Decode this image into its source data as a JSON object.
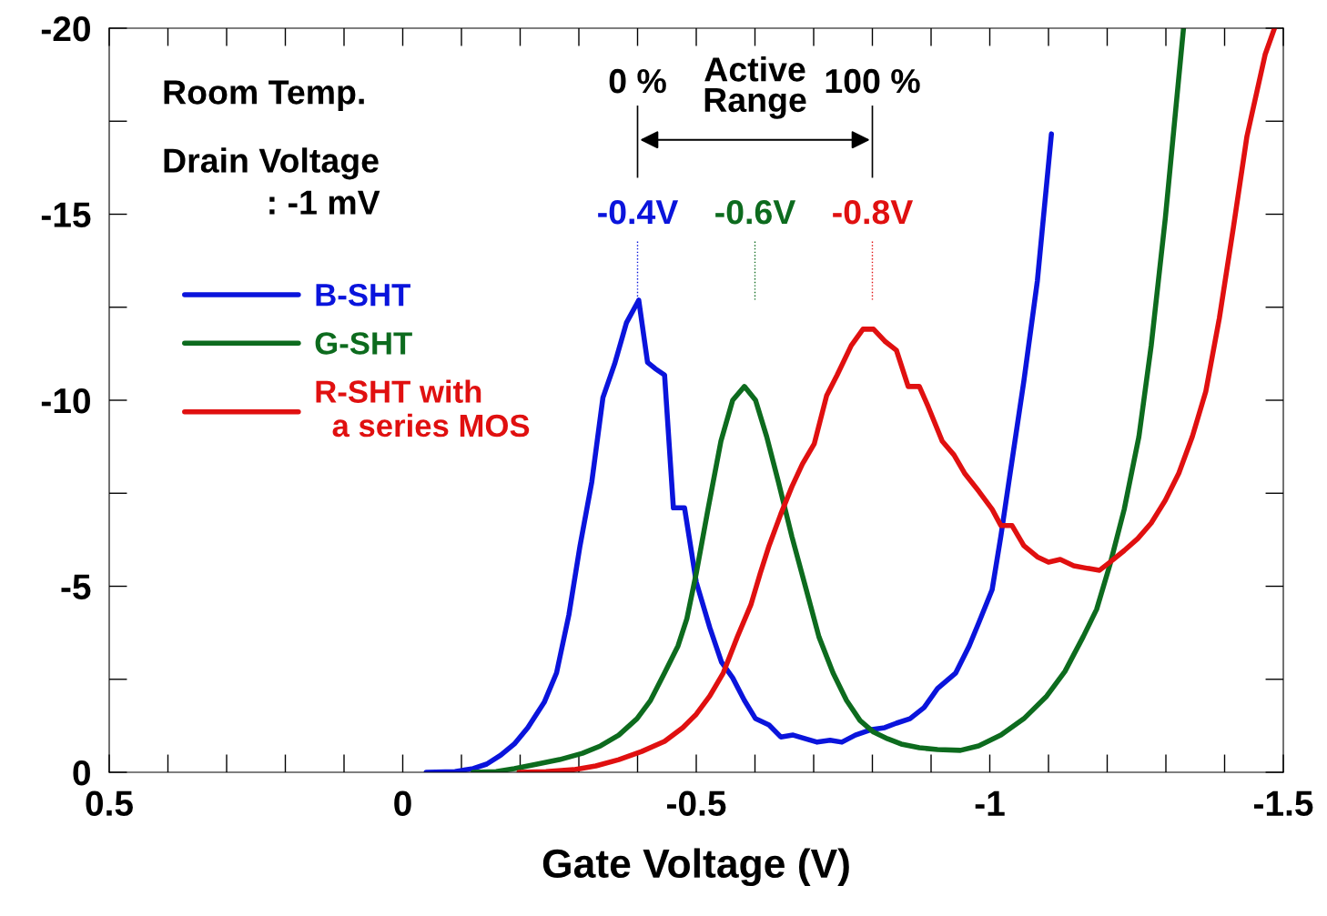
{
  "chart_data": {
    "type": "line",
    "xlabel": "Gate Voltage (V)",
    "xlim": [
      0.5,
      -1.5
    ],
    "xticks": [
      0.5,
      0,
      -0.5,
      -1,
      -1.5
    ],
    "ylim": [
      0,
      -20
    ],
    "yticks": [
      0,
      -5,
      -10,
      -15,
      -20
    ],
    "grid": false,
    "legend": "left",
    "marker": "none",
    "line_style": "solid",
    "series": [
      {
        "name": "B-SHT",
        "color": "#0a14dc",
        "x": [
          -0.04,
          -0.089,
          -0.12,
          -0.143,
          -0.167,
          -0.19,
          -0.213,
          -0.241,
          -0.262,
          -0.283,
          -0.302,
          -0.322,
          -0.341,
          -0.361,
          -0.381,
          -0.402,
          -0.417,
          -0.43,
          -0.446,
          -0.461,
          -0.48,
          -0.5,
          -0.523,
          -0.543,
          -0.562,
          -0.582,
          -0.601,
          -0.624,
          -0.644,
          -0.665,
          -0.686,
          -0.706,
          -0.728,
          -0.748,
          -0.771,
          -0.799,
          -0.821,
          -0.841,
          -0.864,
          -0.888,
          -0.911,
          -0.942,
          -0.965,
          -0.981,
          -1.004,
          -1.019,
          -1.035,
          -1.058,
          -1.081,
          -1.105
        ],
        "values": [
          0,
          -0.02,
          -0.1,
          -0.22,
          -0.46,
          -0.76,
          -1.2,
          -1.88,
          -2.67,
          -4.23,
          -6.09,
          -7.8,
          -10.07,
          -10.98,
          -12.08,
          -12.69,
          -11.02,
          -10.85,
          -10.68,
          -7.11,
          -7.11,
          -5.11,
          -3.89,
          -2.96,
          -2.54,
          -1.93,
          -1.44,
          -1.27,
          -0.95,
          -1.0,
          -0.9,
          -0.81,
          -0.86,
          -0.81,
          -1.0,
          -1.15,
          -1.2,
          -1.32,
          -1.44,
          -1.74,
          -2.25,
          -2.67,
          -3.4,
          -4.01,
          -4.91,
          -6.36,
          -8.07,
          -10.51,
          -13.2,
          -17.16
        ]
      },
      {
        "name": "G-SHT",
        "color": "#0d6b1e",
        "x": [
          -0.12,
          -0.159,
          -0.19,
          -0.229,
          -0.267,
          -0.306,
          -0.337,
          -0.368,
          -0.399,
          -0.422,
          -0.446,
          -0.469,
          -0.484,
          -0.5,
          -0.52,
          -0.542,
          -0.562,
          -0.582,
          -0.601,
          -0.62,
          -0.64,
          -0.663,
          -0.686,
          -0.709,
          -0.733,
          -0.756,
          -0.779,
          -0.802,
          -0.826,
          -0.849,
          -0.88,
          -0.911,
          -0.95,
          -0.981,
          -1.019,
          -1.058,
          -1.097,
          -1.128,
          -1.159,
          -1.182,
          -1.205,
          -1.229,
          -1.254,
          -1.275,
          -1.299,
          -1.33
        ],
        "values": [
          0,
          -0.02,
          -0.1,
          -0.22,
          -0.34,
          -0.51,
          -0.71,
          -1.0,
          -1.44,
          -1.93,
          -2.67,
          -3.4,
          -4.13,
          -5.35,
          -7.07,
          -8.9,
          -10.0,
          -10.37,
          -10.0,
          -9.02,
          -7.8,
          -6.33,
          -4.99,
          -3.64,
          -2.67,
          -1.93,
          -1.39,
          -1.08,
          -0.9,
          -0.76,
          -0.66,
          -0.61,
          -0.59,
          -0.71,
          -1.0,
          -1.44,
          -2.05,
          -2.71,
          -3.64,
          -4.38,
          -5.6,
          -7.07,
          -9.02,
          -11.47,
          -14.89,
          -20.0
        ]
      },
      {
        "name": "R-SHT with\n  a series MOS",
        "color": "#e01010",
        "x": [
          -0.198,
          -0.244,
          -0.291,
          -0.329,
          -0.368,
          -0.407,
          -0.446,
          -0.477,
          -0.5,
          -0.523,
          -0.546,
          -0.57,
          -0.593,
          -0.609,
          -0.624,
          -0.644,
          -0.663,
          -0.681,
          -0.701,
          -0.722,
          -0.74,
          -0.764,
          -0.784,
          -0.802,
          -0.821,
          -0.841,
          -0.861,
          -0.88,
          -0.895,
          -0.919,
          -0.939,
          -0.957,
          -0.981,
          -1.004,
          -1.019,
          -1.038,
          -1.058,
          -1.081,
          -1.1,
          -1.12,
          -1.143,
          -1.167,
          -1.187,
          -1.205,
          -1.229,
          -1.252,
          -1.275,
          -1.299,
          -1.322,
          -1.345,
          -1.368,
          -1.391,
          -1.415,
          -1.438,
          -1.469,
          -1.485
        ],
        "values": [
          0,
          -0.02,
          -0.07,
          -0.17,
          -0.34,
          -0.56,
          -0.83,
          -1.2,
          -1.56,
          -2.05,
          -2.67,
          -3.64,
          -4.5,
          -5.35,
          -6.09,
          -6.94,
          -7.68,
          -8.29,
          -8.83,
          -10.12,
          -10.68,
          -11.47,
          -11.91,
          -11.91,
          -11.59,
          -11.34,
          -10.37,
          -10.37,
          -9.83,
          -8.9,
          -8.53,
          -8.04,
          -7.56,
          -7.07,
          -6.63,
          -6.63,
          -6.09,
          -5.79,
          -5.65,
          -5.72,
          -5.55,
          -5.48,
          -5.43,
          -5.65,
          -5.96,
          -6.28,
          -6.7,
          -7.31,
          -8.04,
          -9.02,
          -10.24,
          -12.2,
          -14.65,
          -17.09,
          -19.29,
          -20.0
        ]
      }
    ],
    "ref_lines": [
      {
        "axis": "x",
        "value": -0.4,
        "label": "-0.4V",
        "color": "#0a14dc",
        "line_style": "dotted"
      },
      {
        "axis": "x",
        "value": -0.6,
        "label": "-0.6V",
        "color": "#0d6b1e",
        "line_style": "dotted"
      },
      {
        "axis": "x",
        "value": -0.8,
        "label": "-0.8V",
        "color": "#e01010",
        "line_style": "dotted"
      },
      {
        "axis": "x",
        "value": -0.4,
        "color": "#000000",
        "line_style": "solid"
      },
      {
        "axis": "x",
        "value": -0.8,
        "color": "#000000",
        "line_style": "solid"
      }
    ],
    "annotations": [
      "Room Temp.",
      "Drain Voltage\n           : -1 mV",
      "0 %",
      "Active\nRange",
      "100 %"
    ]
  }
}
